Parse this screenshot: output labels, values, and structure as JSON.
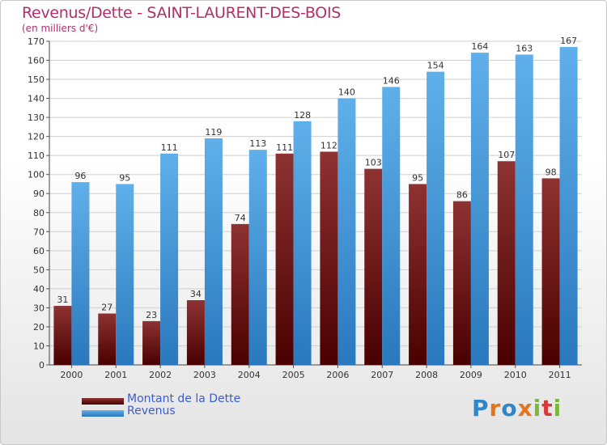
{
  "title": "Revenus/Dette - SAINT-LAURENT-DES-BOIS",
  "subtitle": "(en milliers d'€)",
  "brand": {
    "text": "Proxiti",
    "colors": [
      "#2f86c8",
      "#e8731c",
      "#2f86c8",
      "#e8731c",
      "#7ab83a",
      "#d83a3a",
      "#7ab83a"
    ]
  },
  "legend": {
    "placement": "bottom-left",
    "items": [
      {
        "label": "Montant de la Dette",
        "color": "#6e1515"
      },
      {
        "label": "Revenus",
        "color": "#3f9ee0"
      }
    ]
  },
  "chart_data": {
    "type": "bar",
    "categories": [
      "2000",
      "2001",
      "2002",
      "2003",
      "2004",
      "2005",
      "2006",
      "2007",
      "2008",
      "2009",
      "2010",
      "2011"
    ],
    "series": [
      {
        "name": "Montant de la Dette",
        "color": "#6e1515",
        "values": [
          31,
          27,
          23,
          34,
          74,
          111,
          112,
          103,
          95,
          86,
          107,
          98
        ]
      },
      {
        "name": "Revenus",
        "color": "#3f9ee0",
        "values": [
          96,
          95,
          111,
          119,
          113,
          128,
          140,
          146,
          154,
          164,
          163,
          167
        ]
      }
    ],
    "ylim": [
      0,
      170
    ],
    "ytick_step": 10,
    "grid": true,
    "data_labels": true
  }
}
